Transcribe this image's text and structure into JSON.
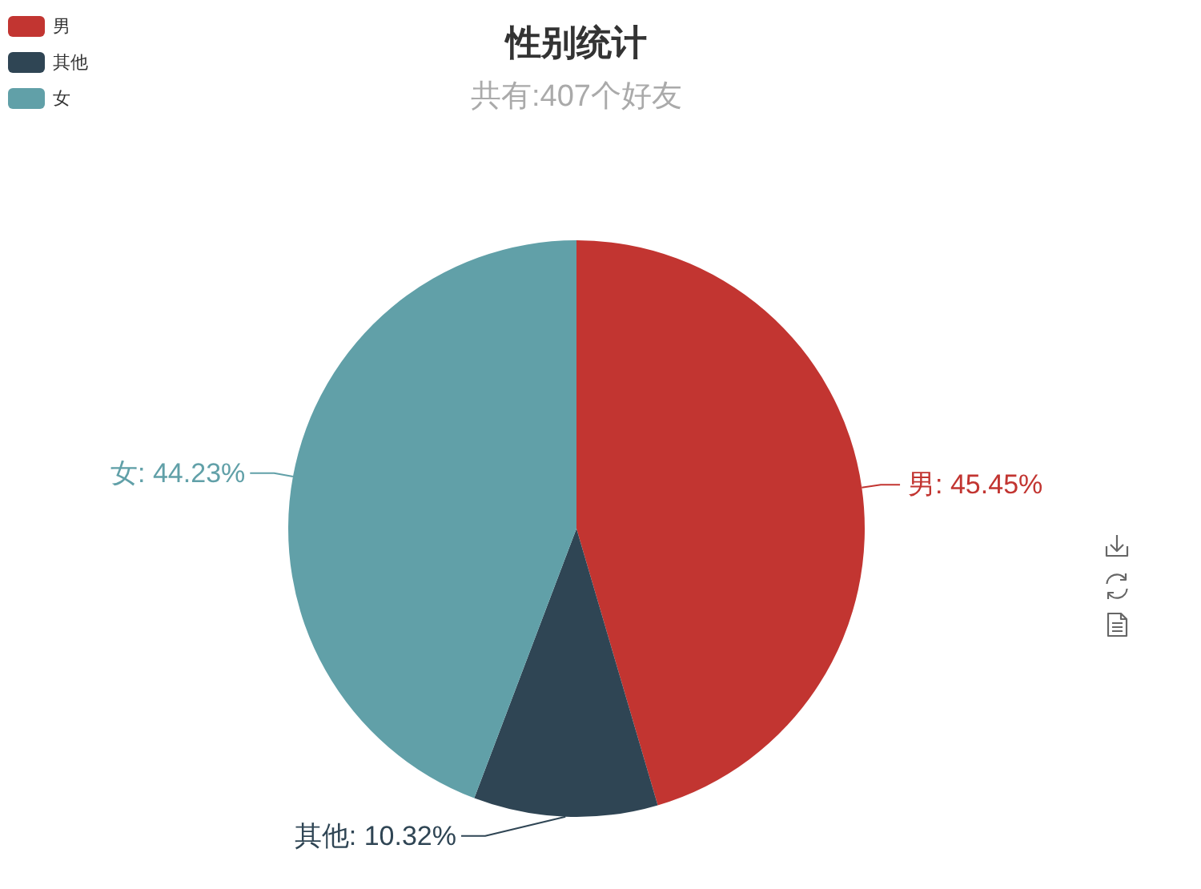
{
  "chart_data": {
    "type": "pie",
    "title": "性别统计",
    "subtitle": "共有:407个好友",
    "categories": [
      "男",
      "其他",
      "女"
    ],
    "values": [
      45.45,
      10.32,
      44.23
    ],
    "colors": [
      "#c23531",
      "#2f4554",
      "#61a0a8"
    ],
    "value_labels": [
      "男: 45.45%",
      "其他: 10.32%",
      "女: 44.23%"
    ],
    "legend": "top left"
  }
}
